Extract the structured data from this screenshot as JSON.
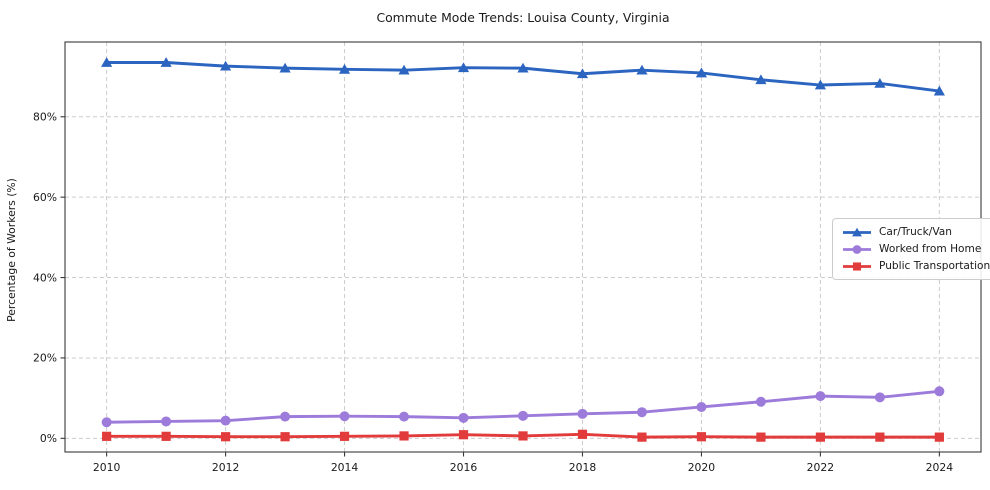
{
  "page": {
    "background_color": "#ffffff",
    "text_color": "#1a1a1a"
  },
  "chart_data": {
    "type": "line",
    "title": "Commute Mode Trends: Louisa County, Virginia",
    "xlabel": "",
    "ylabel": "Percentage of Workers (%)",
    "x": [
      2010,
      2011,
      2012,
      2013,
      2014,
      2015,
      2016,
      2017,
      2018,
      2019,
      2020,
      2021,
      2022,
      2023,
      2024
    ],
    "series": [
      {
        "name": "Car/Truck/Van",
        "color": "#2b65c0",
        "marker": "triangle",
        "values": [
          93.5,
          93.5,
          92.6,
          92.1,
          91.8,
          91.6,
          92.2,
          92.1,
          90.7,
          91.6,
          90.9,
          89.2,
          87.9,
          88.3,
          86.4
        ]
      },
      {
        "name": "Worked from Home",
        "color": "#9d7bdb",
        "marker": "circle",
        "values": [
          4.0,
          4.2,
          4.4,
          5.4,
          5.5,
          5.4,
          5.1,
          5.6,
          6.1,
          6.5,
          7.8,
          9.1,
          10.5,
          10.2,
          11.7
        ]
      },
      {
        "name": "Public Transportation",
        "color": "#e23b3b",
        "marker": "square",
        "values": [
          0.5,
          0.5,
          0.4,
          0.4,
          0.5,
          0.6,
          0.9,
          0.6,
          1.0,
          0.3,
          0.4,
          0.3,
          0.3,
          0.3,
          0.3
        ]
      }
    ],
    "xticks": {
      "values": [
        2010,
        2012,
        2014,
        2016,
        2018,
        2020,
        2022,
        2024
      ],
      "labels": [
        "2010",
        "2012",
        "2014",
        "2016",
        "2018",
        "2020",
        "2022",
        "2024"
      ]
    },
    "yticks": {
      "values": [
        0,
        20,
        40,
        60,
        80
      ],
      "labels": [
        "0%",
        "20%",
        "40%",
        "60%",
        "80%"
      ]
    },
    "xlim": [
      2009.3,
      2024.7
    ],
    "ylim": [
      -3.4,
      98.6
    ],
    "grid": "dashed",
    "grid_color": "#cccccc",
    "frame_color": "#3a3a3a",
    "tick_color": "#3a3a3a",
    "legend": {
      "position": "center right",
      "entries": [
        "Car/Truck/Van",
        "Worked from Home",
        "Public Transportation"
      ]
    }
  }
}
